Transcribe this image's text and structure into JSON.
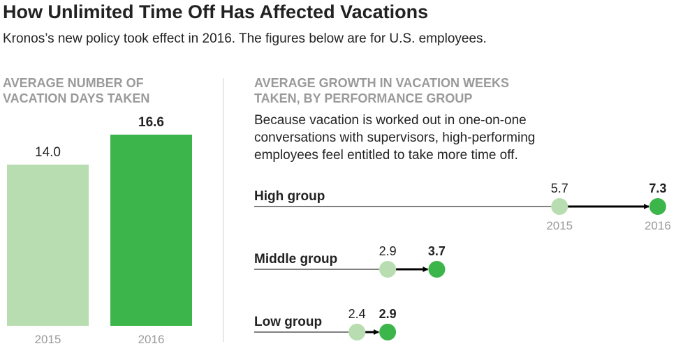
{
  "header": {
    "title": "How Unlimited Time Off Has Affected Vacations",
    "subtitle": "Kronos’s new policy took effect in 2016. The figures below are for U.S. employees."
  },
  "colors": {
    "light_green": "#b8ddb0",
    "dark_green": "#3cb54a",
    "text": "#222222",
    "muted": "#9a9a9a"
  },
  "chart_data": [
    {
      "type": "bar",
      "title_lines": [
        "AVERAGE NUMBER OF",
        "VACATION DAYS TAKEN"
      ],
      "categories": [
        "2015",
        "2016"
      ],
      "values": [
        14.0,
        16.6
      ],
      "value_labels": [
        "14.0",
        "16.6"
      ],
      "ylim": [
        0,
        16.6
      ]
    },
    {
      "type": "dot-arrow",
      "title_lines": [
        "AVERAGE GROWTH IN VACATION WEEKS",
        "TAKEN, BY PERFORMANCE GROUP"
      ],
      "note_lines": [
        "Because vacation is worked out in one-on-one",
        "conversations with supervisors, high-performing",
        "employees feel entitled to take more time off."
      ],
      "year_labels": [
        "2015",
        "2016"
      ],
      "groups": [
        {
          "label": "High group",
          "from": 5.7,
          "to": 7.3,
          "from_label": "5.7",
          "to_label": "7.3"
        },
        {
          "label": "Middle group",
          "from": 2.9,
          "to": 3.7,
          "from_label": "2.9",
          "to_label": "3.7"
        },
        {
          "label": "Low group",
          "from": 2.4,
          "to": 2.9,
          "from_label": "2.4",
          "to_label": "2.9"
        }
      ]
    }
  ]
}
